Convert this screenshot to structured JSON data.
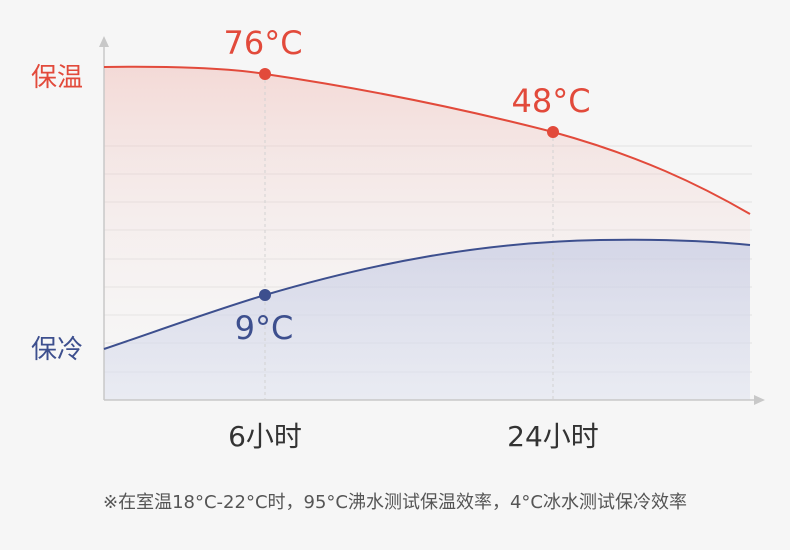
{
  "chart_data": {
    "type": "line",
    "x_labels": [
      "6小时",
      "24小时"
    ],
    "y_labels": {
      "top": "保温",
      "bottom": "保冷"
    },
    "series": [
      {
        "name": "保温",
        "color": "#e24a3b",
        "points": [
          {
            "x": "6小时",
            "value": 76,
            "label": "76°C"
          },
          {
            "x": "24小时",
            "value": 48,
            "label": "48°C"
          }
        ]
      },
      {
        "name": "保冷",
        "color": "#3d4f8e",
        "points": [
          {
            "x": "6小时",
            "value": 9,
            "label": "9°C"
          }
        ]
      }
    ],
    "grid": true
  },
  "footnote": "※在室温18°C-22°C时，95°C沸水测试保温效率，4°C冰水测试保冷效率"
}
